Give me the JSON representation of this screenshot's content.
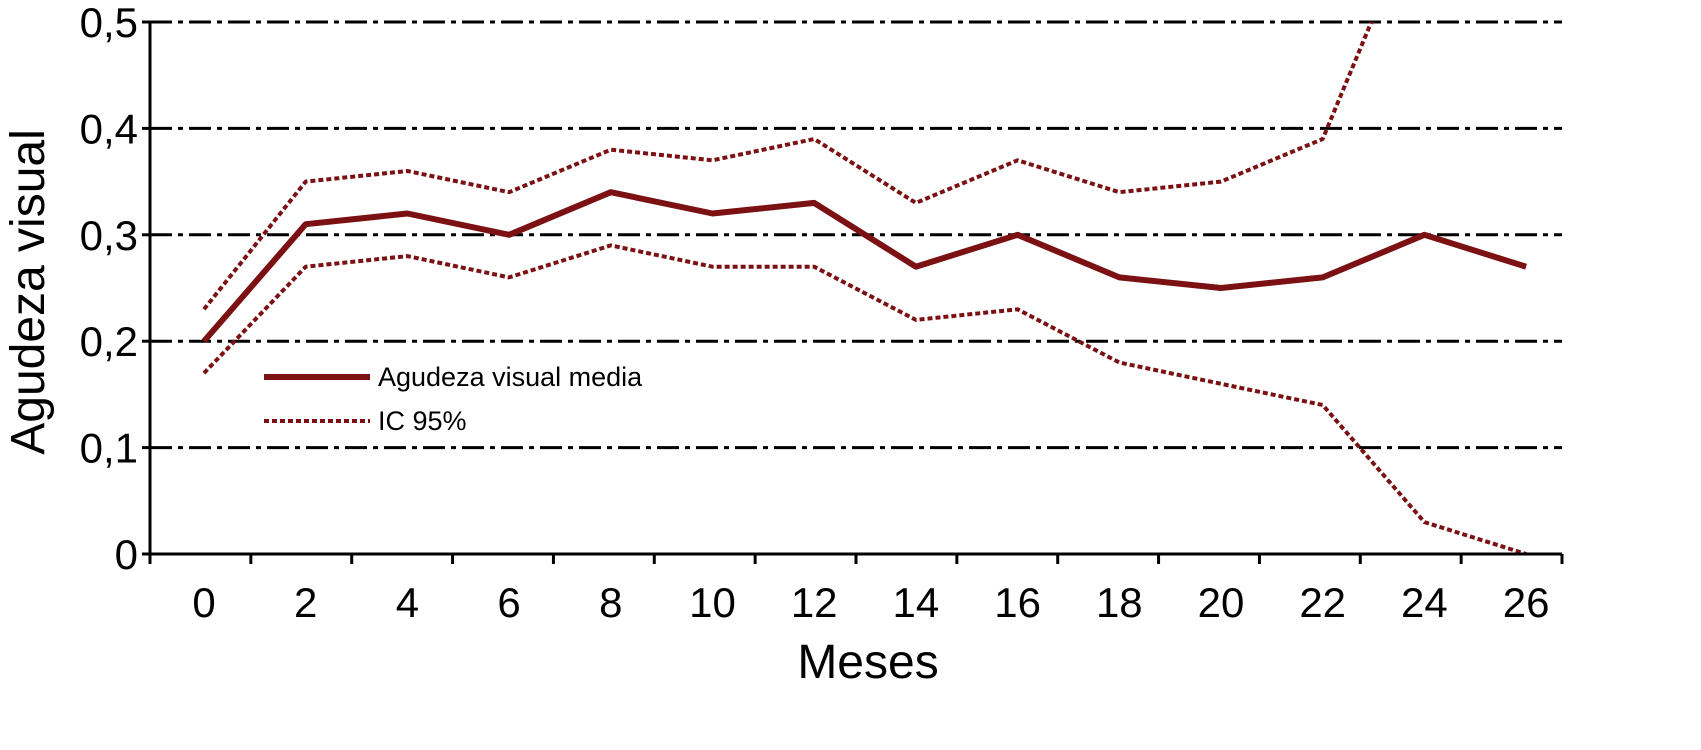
{
  "chart_data": {
    "type": "line",
    "xlabel": "Meses",
    "ylabel": "Agudeza visual",
    "xticks": [
      "0",
      "2",
      "4",
      "6",
      "8",
      "10",
      "12",
      "14",
      "16",
      "18",
      "20",
      "22",
      "24",
      "26"
    ],
    "yticks": [
      "0",
      "0,1",
      "0,2",
      "0,3",
      "0,4",
      "0,5"
    ],
    "xlim": [
      -1,
      27
    ],
    "ylim": [
      0,
      0.5
    ],
    "grid": "horizontal dash-dot",
    "legend_position": "center-left",
    "series": [
      {
        "name": "Agudeza visual media",
        "style": "solid",
        "color": "#7b1113",
        "x": [
          0,
          2,
          4,
          6,
          8,
          10,
          12,
          14,
          16,
          18,
          20,
          22,
          24,
          26
        ],
        "y": [
          0.2,
          0.31,
          0.32,
          0.3,
          0.34,
          0.32,
          0.33,
          0.27,
          0.3,
          0.26,
          0.25,
          0.26,
          0.3,
          0.27
        ]
      },
      {
        "name": "IC 95%",
        "style": "dotted",
        "color": "#7b1113",
        "x": [
          0,
          2,
          4,
          6,
          8,
          10,
          12,
          14,
          16,
          18,
          20,
          22,
          24
        ],
        "y": [
          0.23,
          0.35,
          0.36,
          0.34,
          0.38,
          0.37,
          0.39,
          0.33,
          0.37,
          0.34,
          0.35,
          0.39,
          0.62
        ]
      },
      {
        "style": "dotted",
        "color": "#7b1113",
        "x": [
          0,
          2,
          4,
          6,
          8,
          10,
          12,
          14,
          16,
          18,
          20,
          22,
          24,
          26
        ],
        "y": [
          0.17,
          0.27,
          0.28,
          0.26,
          0.29,
          0.27,
          0.27,
          0.22,
          0.23,
          0.18,
          0.16,
          0.14,
          0.03,
          0.0
        ]
      }
    ]
  }
}
